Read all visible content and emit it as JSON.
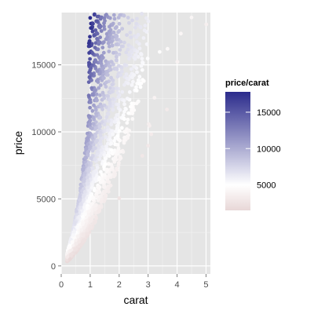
{
  "chart_data": {
    "type": "scatter",
    "title": "",
    "xlabel": "carat",
    "ylabel": "price",
    "xlim": [
      0,
      5.15
    ],
    "ylim": [
      -600,
      18900
    ],
    "x_ticks": [
      0,
      1,
      2,
      3,
      4,
      5
    ],
    "y_ticks": [
      0,
      5000,
      10000,
      15000
    ],
    "grid": true,
    "color_variable": "price/carat",
    "legend": {
      "title": "price/carat",
      "placement": "right",
      "ticks": [
        5000,
        10000,
        15000
      ],
      "range": [
        1500,
        17800
      ],
      "low_color": "#e8d7d7",
      "mid_color": "#ffffff",
      "high_color": "#2b2b8c",
      "midpoint": 5000
    },
    "points_sample": [
      {
        "x": 4.5,
        "y": 18531
      },
      {
        "x": 5.01,
        "y": 18018
      },
      {
        "x": 4.01,
        "y": 15223
      },
      {
        "x": 4.13,
        "y": 17329
      },
      {
        "x": 4.01,
        "y": 15223
      },
      {
        "x": 3.65,
        "y": 11668
      },
      {
        "x": 3.67,
        "y": 16193
      },
      {
        "x": 3.4,
        "y": 15964
      },
      {
        "x": 3.22,
        "y": 12545
      },
      {
        "x": 3.11,
        "y": 9823
      },
      {
        "x": 3.05,
        "y": 10453
      },
      {
        "x": 3.0,
        "y": 8970
      },
      {
        "x": 3.02,
        "y": 10577
      },
      {
        "x": 2.8,
        "y": 8215
      },
      {
        "x": 3.01,
        "y": 18242
      },
      {
        "x": 2.0,
        "y": 5051
      },
      {
        "x": 1.0,
        "y": 18500
      },
      {
        "x": 0.9,
        "y": 6600
      },
      {
        "x": 0.7,
        "y": 2700
      },
      {
        "x": 0.3,
        "y": 500
      }
    ]
  }
}
